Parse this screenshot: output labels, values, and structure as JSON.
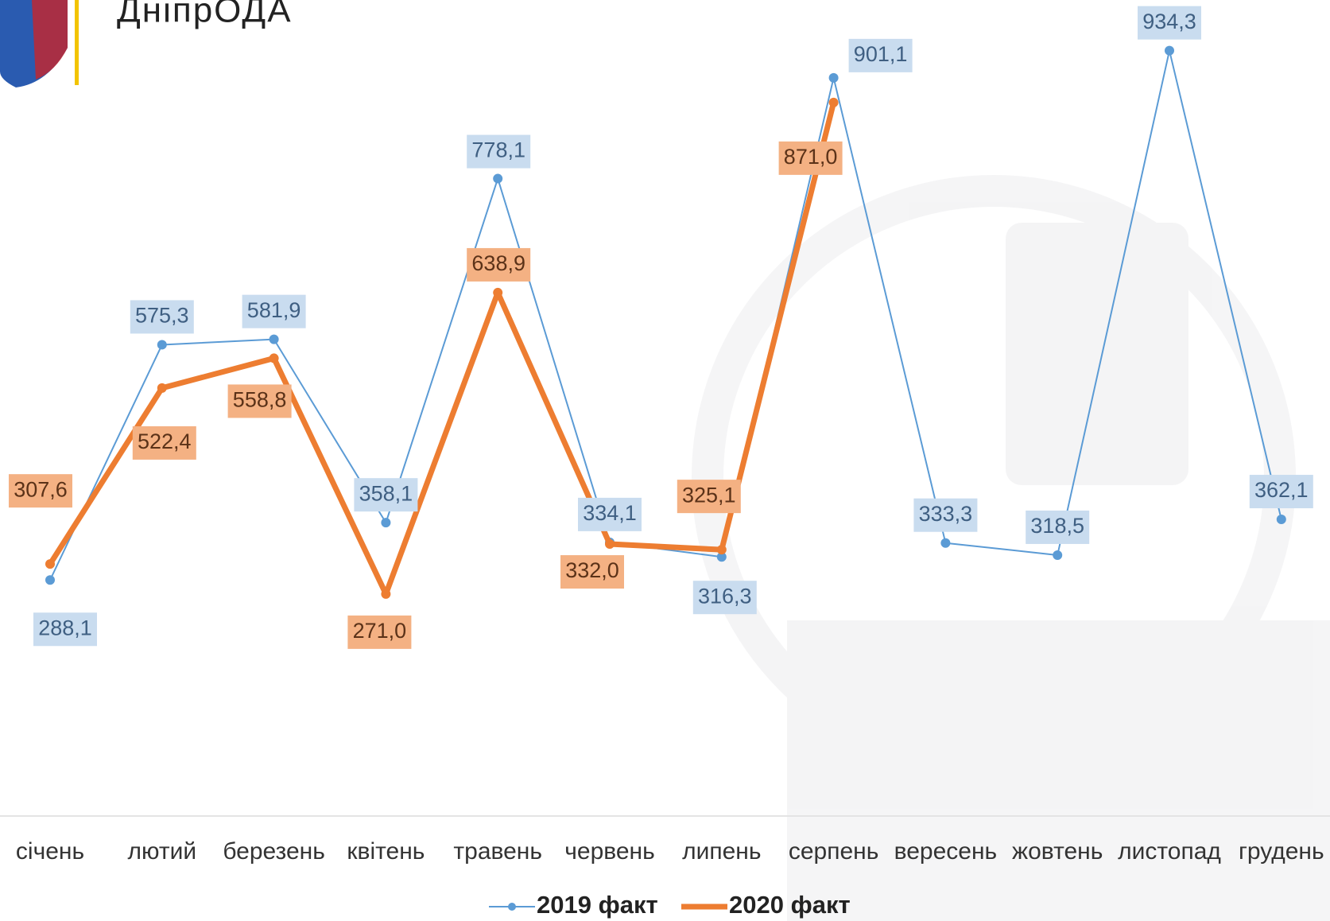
{
  "header": {
    "title": "ДніпрОДА"
  },
  "chart_data": {
    "type": "line",
    "categories": [
      "січень",
      "лютий",
      "березень",
      "квітень",
      "травень",
      "червень",
      "липень",
      "серпень",
      "вересень",
      "жовтень",
      "листопад",
      "грудень"
    ],
    "series": [
      {
        "name": "2019 факт",
        "color": "#5b9bd5",
        "values": [
          288.1,
          575.3,
          581.9,
          358.1,
          778.1,
          334.1,
          316.3,
          901.1,
          333.3,
          318.5,
          934.3,
          362.1
        ],
        "value_labels": [
          "288,1",
          "575,3",
          "581,9",
          "358,1",
          "778,1",
          "334,1",
          "316,3",
          "901,1",
          "333,3",
          "318,5",
          "934,3",
          "362,1"
        ]
      },
      {
        "name": "2020 факт",
        "color": "#ed7d31",
        "values": [
          307.6,
          522.4,
          558.8,
          271.0,
          638.9,
          332.0,
          325.1,
          871.0,
          null,
          null,
          null,
          null
        ],
        "value_labels": [
          "307,6",
          "522,4",
          "558,8",
          "271,0",
          "638,9",
          "332,0",
          "325,1",
          "871,0",
          null,
          null,
          null,
          null
        ]
      }
    ],
    "ylim": [
      0,
      1000
    ],
    "legend": "bottom"
  }
}
